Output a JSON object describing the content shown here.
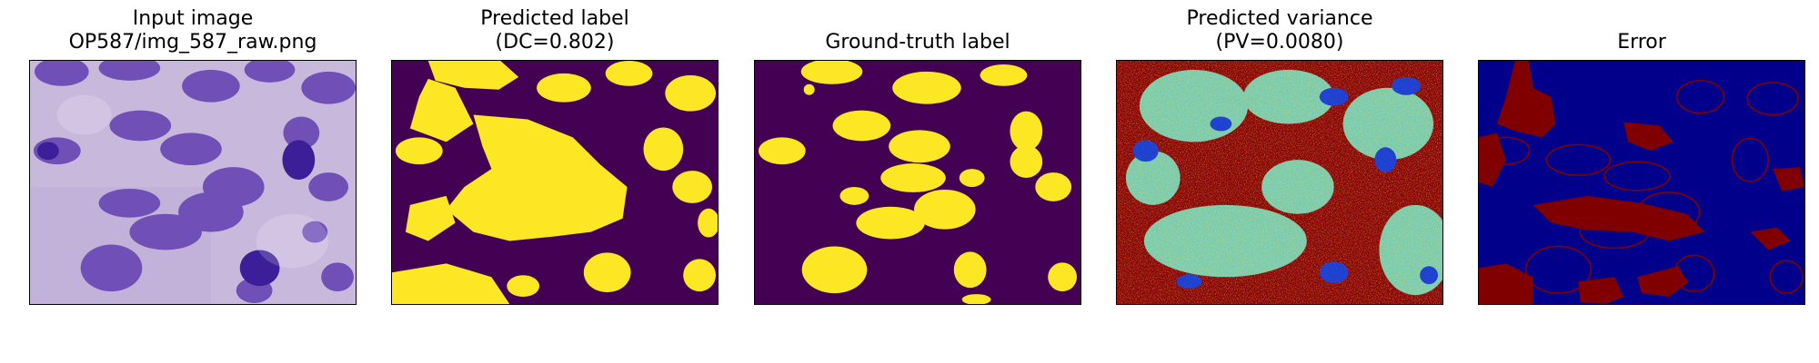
{
  "panels": [
    {
      "title_line1": "Input image",
      "title_line2": "OP587/img_587_raw.png"
    },
    {
      "title_line1": "Predicted label",
      "title_line2": "(DC=0.802)"
    },
    {
      "title_line1": "",
      "title_line2": "Ground-truth label"
    },
    {
      "title_line1": "Predicted variance",
      "title_line2": "(PV=0.0080)"
    },
    {
      "title_line1": "",
      "title_line2": "Error"
    }
  ],
  "colors": {
    "background_stain": "#c3b2d8",
    "nucleus": "#6a47b4",
    "nucleus_dark": "#3a1f94",
    "label_background": "#440154",
    "label_foreground": "#fde725",
    "variance_high": "#8b0000",
    "variance_mid": "#79e2c1",
    "variance_low": "#1f3fcf",
    "error_background": "#00008b",
    "error_foreground": "#800000"
  }
}
